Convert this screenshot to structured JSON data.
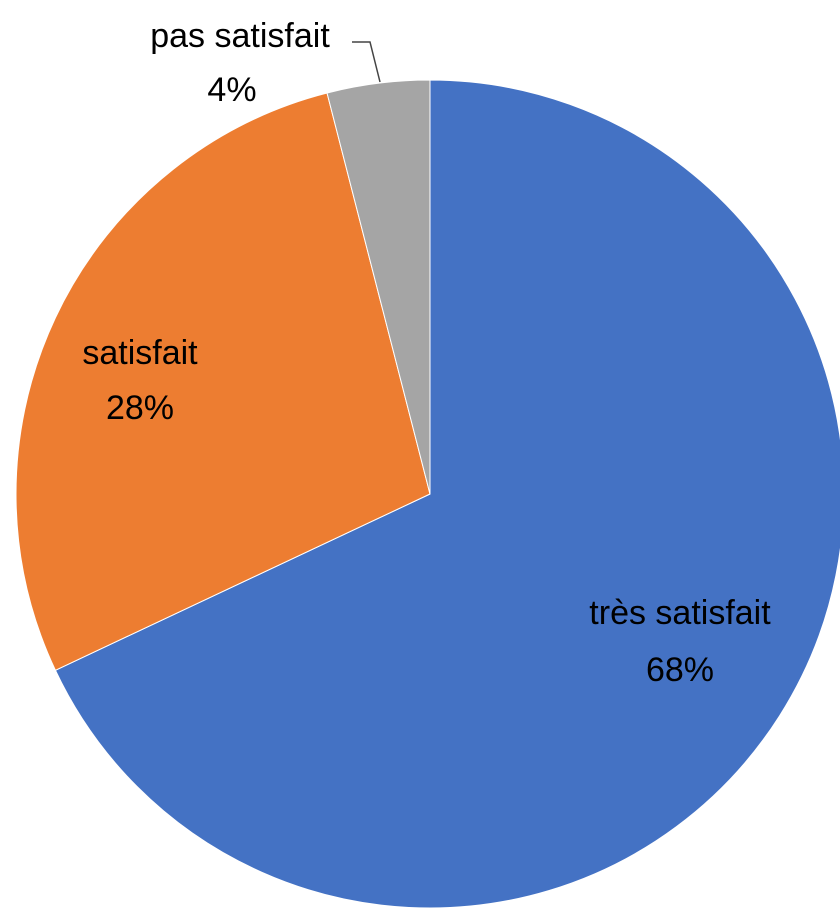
{
  "chart_data": {
    "type": "pie",
    "categories": [
      "très satisfait",
      "satisfait",
      "pas satisfait"
    ],
    "values": [
      68,
      28,
      4
    ],
    "value_labels": [
      "68%",
      "28%",
      "4%"
    ],
    "colors": [
      "#4472c4",
      "#ed7d31",
      "#a5a5a5"
    ]
  }
}
